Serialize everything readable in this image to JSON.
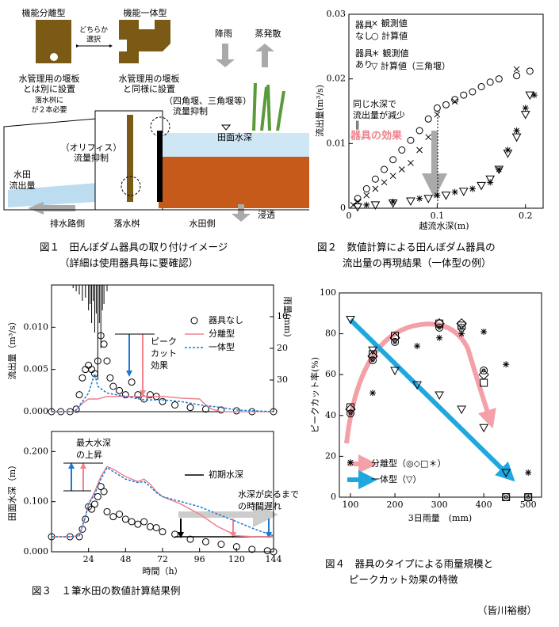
{
  "figure1": {
    "texts": [
      "機能分離型",
      "機能一体型",
      "どちらか",
      "選択",
      "水管理用の堰板",
      "とは別に設置",
      "落水桝に",
      "が２本必要",
      "水管理用の堰板",
      "と同様に設置",
      "降雨",
      "蒸発散",
      "（四角堰、三角堰等）",
      "流量抑制",
      "田面水深",
      "（オリフィス）",
      "流量抑制",
      "水田",
      "流出量",
      "排水路側",
      "落水桝",
      "水田側",
      "浸透"
    ]
  },
  "captions": [
    "図１　田んぼダム器具の取り付けイメージ",
    "（詳細は使用器具毎に要確認）",
    "図２　数値計算による田んぼダム器具の",
    "流出量の再現結果（一体型の例）",
    "図３　１筆水田の数値計算結果例",
    "図４　器具のタイプによる雨量規模と",
    "ピークカット効果の特徴"
  ],
  "author": "（皆川裕樹）",
  "chart_data": [
    {
      "type": "scatter",
      "xlabel": "越流水深(m)",
      "ylabel": "流出量(m³/s)",
      "xlim": [
        0,
        0.22
      ],
      "xticks": [
        0,
        0.1,
        0.2
      ],
      "ylim": [
        0,
        0.03
      ],
      "yticks": [
        0,
        0.01,
        0.02,
        0.03
      ],
      "legend": [
        "器具",
        "なし",
        "× 観測値",
        "○ 計算値",
        "器具",
        "あり",
        "＊ 観測値",
        "▽ 計算値（三角堰）"
      ],
      "annotations": [
        "同じ水深で",
        "流出量が減少",
        "‖",
        "器具の効果"
      ],
      "series": [
        {
          "marker": "x",
          "color": "#000000",
          "x": [
            0.005,
            0.01,
            0.02,
            0.03,
            0.04,
            0.05,
            0.06,
            0.07,
            0.08,
            0.09,
            0.1,
            0.12,
            0.19
          ],
          "values": [
            0.0005,
            0.001,
            0.002,
            0.003,
            0.004,
            0.005,
            0.006,
            0.007,
            0.009,
            0.011,
            0.0145,
            0.0165,
            0.0215
          ]
        },
        {
          "marker": "circle",
          "color": "#000000",
          "x": [
            0.01,
            0.02,
            0.03,
            0.04,
            0.05,
            0.06,
            0.07,
            0.08,
            0.09,
            0.1,
            0.11,
            0.12,
            0.13,
            0.14,
            0.15,
            0.16,
            0.17,
            0.19,
            0.205
          ],
          "values": [
            0.0015,
            0.003,
            0.0045,
            0.006,
            0.0075,
            0.009,
            0.0105,
            0.012,
            0.0138,
            0.0155,
            0.016,
            0.0168,
            0.0175,
            0.018,
            0.0188,
            0.0195,
            0.02,
            0.0205,
            0.0212
          ]
        },
        {
          "marker": "asterisk",
          "color": "#000000",
          "x": [
            0.02,
            0.05,
            0.08,
            0.1,
            0.12,
            0.14,
            0.16,
            0.17,
            0.18,
            0.19,
            0.2,
            0.21
          ],
          "values": [
            0.0005,
            0.001,
            0.0015,
            0.002,
            0.0025,
            0.003,
            0.004,
            0.006,
            0.009,
            0.012,
            0.0155,
            0.0175
          ]
        },
        {
          "marker": "triangle",
          "color": "#000000",
          "x": [
            0.01,
            0.03,
            0.05,
            0.07,
            0.09,
            0.11,
            0.13,
            0.15,
            0.16,
            0.17,
            0.18,
            0.19,
            0.2,
            0.205
          ],
          "values": [
            0.0002,
            0.0005,
            0.0008,
            0.0011,
            0.0015,
            0.002,
            0.0026,
            0.0035,
            0.0045,
            0.006,
            0.0085,
            0.011,
            0.0145,
            0.0175
          ]
        }
      ]
    },
    {
      "type": "line",
      "ylabel": "流出量（m³/s）",
      "y2label": "雨量(mm)",
      "xlim": [
        0,
        144
      ],
      "ylim": [
        0,
        0.015
      ],
      "yticks": [
        {
          "value": 0,
          "label": "0.000"
        },
        {
          "value": 0.005,
          "label": "0.005"
        },
        {
          "value": 0.01,
          "label": "0.010"
        }
      ],
      "y2lim": [
        0,
        40
      ],
      "y2ticks": [
        10,
        20,
        30
      ],
      "y2_reversed": true,
      "annotations": [
        "ピーク",
        "カット",
        "効果"
      ],
      "series": [
        {
          "name": "雨量",
          "marker": "bar",
          "axis": "y2",
          "color": "#000000",
          "x": [
            14,
            16,
            18,
            20,
            22,
            24,
            25,
            26,
            27,
            28,
            29,
            30,
            31,
            32,
            33,
            34,
            36
          ],
          "values": [
            1,
            2,
            3,
            5,
            4,
            8,
            6,
            12,
            5,
            15,
            9,
            30,
            12,
            20,
            8,
            6,
            2
          ]
        },
        {
          "name": "器具なし",
          "marker": "circle",
          "color": "#000000",
          "x": [
            0,
            6,
            12,
            16,
            18,
            20,
            22,
            24,
            26,
            28,
            30,
            32,
            34,
            36,
            38,
            40,
            44,
            48,
            52,
            56,
            60,
            64,
            68,
            72,
            80,
            90,
            100,
            110,
            120,
            130,
            144
          ],
          "values": [
            0,
            0,
            0,
            0.0003,
            0.002,
            0.004,
            0.005,
            0.0055,
            0.005,
            0.0045,
            0.006,
            0.009,
            0.008,
            0.006,
            0.004,
            0.003,
            0.0025,
            0.002,
            0.0035,
            0.002,
            0.0015,
            0.002,
            0.0018,
            0.0012,
            0.0008,
            0.0005,
            0.0003,
            0.0002,
            0.0001,
            0,
            0
          ]
        },
        {
          "name": "分離型",
          "marker": "line",
          "color": "#f0828c",
          "x": [
            0,
            15,
            20,
            24,
            30,
            36,
            48,
            60,
            72,
            84,
            96,
            100,
            104,
            110,
            144
          ],
          "values": [
            0,
            0,
            0.001,
            0.0015,
            0.0015,
            0.0018,
            0.0018,
            0.0018,
            0.0018,
            0.0016,
            0.0015,
            0.0008,
            0.0003,
            0,
            0
          ]
        },
        {
          "name": "一体型",
          "marker": "dashed",
          "color": "#1e78d2",
          "x": [
            0,
            15,
            20,
            24,
            28,
            30,
            36,
            48,
            60,
            72,
            84,
            96,
            110,
            120,
            144
          ],
          "values": [
            0,
            0,
            0.0012,
            0.0022,
            0.0045,
            0.003,
            0.0022,
            0.0018,
            0.0014,
            0.0014,
            0.0012,
            0.0008,
            0.0005,
            0.0002,
            0
          ]
        }
      ]
    },
    {
      "type": "line",
      "xlabel": "時間（h）",
      "ylabel": "田面水深（m）",
      "xlim": [
        0,
        144
      ],
      "xticks": [
        24,
        48,
        72,
        96,
        120,
        144
      ],
      "ylim": [
        0,
        0.24
      ],
      "yticks": [
        {
          "value": 0,
          "label": "0.000"
        },
        {
          "value": 0.1,
          "label": "0.100"
        },
        {
          "value": 0.2,
          "label": "0.200"
        }
      ],
      "annotations": [
        "最大水深",
        "の上昇",
        "水深が戻るまで",
        "の時間遅れ"
      ],
      "series": [
        {
          "name": "初期水深",
          "marker": "line",
          "color": "#000000",
          "x": [
            80,
            144
          ],
          "values": [
            0.03,
            0.03
          ]
        },
        {
          "marker": "circle",
          "color": "#000000",
          "x": [
            0,
            12,
            18,
            20,
            22,
            24,
            26,
            28,
            30,
            32,
            34,
            36,
            40,
            44,
            48,
            52,
            56,
            60,
            64,
            68,
            72,
            80,
            90,
            100,
            110,
            120,
            130,
            140,
            144
          ],
          "values": [
            0.03,
            0.03,
            0.03,
            0.045,
            0.065,
            0.09,
            0.085,
            0.095,
            0.11,
            0.13,
            0.12,
            0.08,
            0.07,
            0.075,
            0.065,
            0.06,
            0.055,
            0.06,
            0.05,
            0.048,
            0.04,
            0.035,
            0.025,
            0.02,
            0.015,
            0.01,
            0.005,
            0.002,
            0
          ]
        },
        {
          "marker": "line",
          "color": "#f0828c",
          "x": [
            0,
            12,
            18,
            22,
            24,
            28,
            32,
            36,
            40,
            48,
            56,
            60,
            64,
            68,
            72,
            84,
            96,
            108,
            120,
            132,
            144
          ],
          "values": [
            0.03,
            0.03,
            0.032,
            0.07,
            0.095,
            0.12,
            0.15,
            0.17,
            0.165,
            0.15,
            0.14,
            0.145,
            0.135,
            0.12,
            0.11,
            0.095,
            0.075,
            0.05,
            0.032,
            0.03,
            0.03
          ]
        },
        {
          "marker": "dashed",
          "color": "#1e78d2",
          "x": [
            0,
            12,
            18,
            22,
            24,
            28,
            32,
            36,
            40,
            48,
            56,
            60,
            64,
            68,
            72,
            84,
            96,
            108,
            120,
            132,
            144
          ],
          "values": [
            0.03,
            0.03,
            0.032,
            0.07,
            0.095,
            0.115,
            0.145,
            0.168,
            0.16,
            0.145,
            0.138,
            0.14,
            0.13,
            0.118,
            0.11,
            0.1,
            0.09,
            0.075,
            0.06,
            0.045,
            0.032
          ]
        }
      ]
    },
    {
      "type": "scatter",
      "xlabel": "3日雨量　(mm)",
      "ylabel": "ピークカット率(%)",
      "xlim": [
        75,
        530
      ],
      "xticks": [
        100,
        200,
        300,
        400,
        500
      ],
      "ylim": [
        0,
        100
      ],
      "yticks": [
        0,
        20,
        40,
        60,
        80,
        100
      ],
      "legend": [
        "分離型（◎◇□＊）",
        "一体型（▽）"
      ],
      "legend_colors": [
        "#f4a0a8",
        "#1fa8e0"
      ],
      "series": [
        {
          "marker": "dcircle",
          "color": "#000000",
          "x": [
            100,
            150,
            200,
            300,
            350,
            400,
            450,
            500
          ],
          "values": [
            41,
            67,
            76,
            83,
            83,
            62,
            0,
            0
          ]
        },
        {
          "marker": "diamond",
          "color": "#000000",
          "x": [
            100,
            150,
            200,
            300,
            350,
            400
          ],
          "values": [
            43,
            69,
            78,
            85,
            85,
            60
          ]
        },
        {
          "marker": "square",
          "color": "#000000",
          "x": [
            100,
            150,
            200,
            300,
            350,
            400,
            450,
            500
          ],
          "values": [
            44,
            70,
            79,
            85,
            84,
            56,
            0,
            0
          ]
        },
        {
          "marker": "asterisk",
          "color": "#000000",
          "x": [
            100,
            150,
            250,
            300,
            350,
            400,
            450,
            500
          ],
          "values": [
            17,
            51,
            74,
            78,
            80,
            81,
            65,
            12
          ]
        },
        {
          "marker": "triangle",
          "color": "#000000",
          "x": [
            100,
            150,
            200,
            250,
            300,
            350,
            400,
            450
          ],
          "values": [
            87,
            72,
            62,
            55,
            50,
            43,
            34,
            12
          ]
        }
      ]
    }
  ]
}
